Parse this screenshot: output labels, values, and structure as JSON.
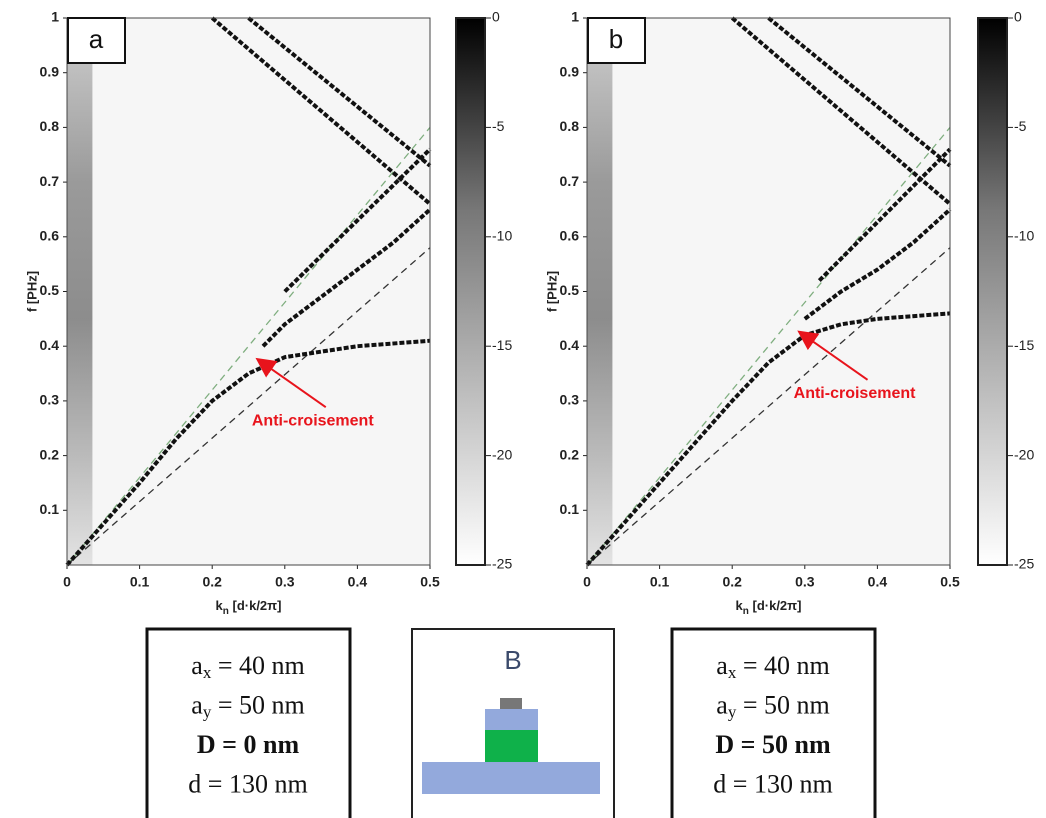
{
  "chart_data": [
    {
      "type": "heatmap",
      "label": "a",
      "xlabel": [
        "k",
        "n",
        " [d·k/2π]"
      ],
      "ylabel": "f [PHz]",
      "xlim": [
        0,
        0.5
      ],
      "xticks": [
        0,
        0.1,
        0.2,
        0.3,
        0.4,
        0.5
      ],
      "ylim": [
        0,
        1
      ],
      "yticks": [
        0.1,
        0.2,
        0.3,
        0.4,
        0.5,
        0.6,
        0.7,
        0.8,
        0.9,
        1
      ],
      "clim": [
        -25,
        0
      ],
      "cticks": [
        0,
        -5,
        -10,
        -15,
        -20,
        -25
      ],
      "guides": [
        {
          "color": "#7fae7f",
          "x": [
            0,
            0.5
          ],
          "y": [
            0,
            0.8
          ]
        },
        {
          "color": "#333333",
          "x": [
            0,
            0.5
          ],
          "y": [
            0,
            0.58
          ]
        }
      ],
      "bands": [
        {
          "x": [
            0,
            0.1,
            0.15,
            0.2,
            0.25,
            0.3,
            0.4,
            0.5
          ],
          "y": [
            0,
            0.15,
            0.23,
            0.3,
            0.35,
            0.38,
            0.4,
            0.41
          ]
        },
        {
          "x": [
            0.27,
            0.3,
            0.35,
            0.4,
            0.45,
            0.5
          ],
          "y": [
            0.4,
            0.44,
            0.49,
            0.54,
            0.59,
            0.65
          ]
        },
        {
          "x": [
            0.3,
            0.5
          ],
          "y": [
            0.5,
            0.76
          ]
        },
        {
          "x": [
            0.2,
            0.5
          ],
          "y": [
            1,
            0.66
          ]
        },
        {
          "x": [
            0.25,
            0.5
          ],
          "y": [
            1,
            0.73
          ]
        }
      ],
      "annotation": {
        "text": "Anti-croisement",
        "x": 0.26,
        "y": 0.38
      }
    },
    {
      "type": "heatmap",
      "label": "b",
      "xlabel": [
        "k",
        "n",
        " [d·k/2π]"
      ],
      "ylabel": "f [PHz]",
      "xlim": [
        0,
        0.5
      ],
      "xticks": [
        0,
        0.1,
        0.2,
        0.3,
        0.4,
        0.5
      ],
      "ylim": [
        0,
        1
      ],
      "yticks": [
        0.1,
        0.2,
        0.3,
        0.4,
        0.5,
        0.6,
        0.7,
        0.8,
        0.9,
        1
      ],
      "clim": [
        -25,
        0
      ],
      "cticks": [
        0,
        -5,
        -10,
        -15,
        -20,
        -25
      ],
      "guides": [
        {
          "color": "#7fae7f",
          "x": [
            0,
            0.5
          ],
          "y": [
            0,
            0.8
          ]
        },
        {
          "color": "#333333",
          "x": [
            0,
            0.5
          ],
          "y": [
            0,
            0.58
          ]
        }
      ],
      "bands": [
        {
          "x": [
            0,
            0.1,
            0.2,
            0.25,
            0.3,
            0.35,
            0.4,
            0.5
          ],
          "y": [
            0,
            0.15,
            0.3,
            0.37,
            0.42,
            0.44,
            0.45,
            0.46
          ]
        },
        {
          "x": [
            0.3,
            0.35,
            0.4,
            0.45,
            0.5
          ],
          "y": [
            0.45,
            0.5,
            0.54,
            0.59,
            0.65
          ]
        },
        {
          "x": [
            0.32,
            0.5
          ],
          "y": [
            0.52,
            0.76
          ]
        },
        {
          "x": [
            0.2,
            0.5
          ],
          "y": [
            1,
            0.66
          ]
        },
        {
          "x": [
            0.25,
            0.5
          ],
          "y": [
            1,
            0.73
          ]
        }
      ],
      "annotation": {
        "text": "Anti-croisement",
        "x": 0.29,
        "y": 0.43
      }
    }
  ],
  "parameters": [
    [
      {
        "sym": "a",
        "sub": "x",
        "rest": " = 40 nm"
      },
      {
        "sym": "a",
        "sub": "y",
        "rest": " = 50 nm"
      },
      {
        "sym": "D = 0 nm",
        "bold": true
      },
      {
        "sym": "d = 130 nm"
      }
    ],
    [
      {
        "sym": "a",
        "sub": "x",
        "rest": " = 40 nm"
      },
      {
        "sym": "a",
        "sub": "y",
        "rest": " = 50 nm"
      },
      {
        "sym": "D = 50 nm",
        "bold": true
      },
      {
        "sym": "d = 130 nm"
      }
    ]
  ],
  "schematic": {
    "label": "B"
  }
}
